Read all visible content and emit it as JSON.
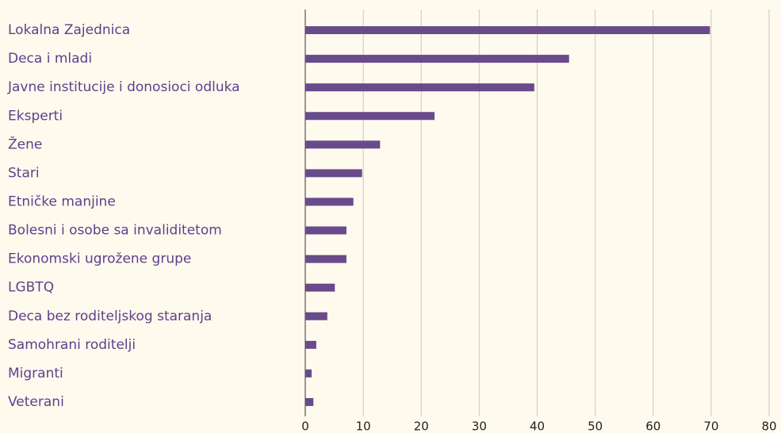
{
  "chart_data": {
    "type": "barh",
    "categories": [
      "Lokalna Zajednica",
      "Deca i mladi",
      "Javne institucije i donosioci odluka",
      "Eksperti",
      "Žene",
      "Stari",
      "Etničke manjine",
      "Bolesni i osobe sa invaliditetom",
      "Ekonomski ugrožene grupe",
      "LGBTQ",
      "Deca bez roditeljskog staranja",
      "Samohrani roditelji",
      "Migranti",
      "Veterani"
    ],
    "values": [
      69.8,
      45.5,
      39.5,
      22.3,
      12.9,
      9.8,
      8.3,
      7.1,
      7.1,
      5.1,
      3.8,
      1.9,
      1.1,
      1.4
    ],
    "color": "#694b8c",
    "xlim": [
      0,
      80
    ],
    "xticks": [
      0,
      10,
      20,
      30,
      40,
      50,
      60,
      70,
      80
    ],
    "grid": true
  }
}
